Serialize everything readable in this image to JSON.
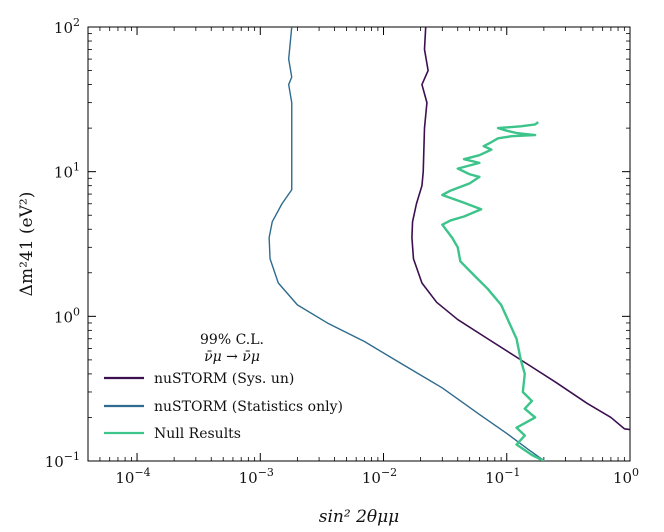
{
  "chart_data": {
    "type": "line",
    "xscale": "log",
    "yscale": "log",
    "xlim": [
      4e-05,
      1
    ],
    "ylim": [
      0.1,
      100
    ],
    "xlabel": "sin² 2θμμ",
    "ylabel": "Δm²41 (eV²)",
    "x_ticks": [
      {
        "value": 0.0001,
        "base": "10",
        "exp": "−4"
      },
      {
        "value": 0.001,
        "base": "10",
        "exp": "−3"
      },
      {
        "value": 0.01,
        "base": "10",
        "exp": "−2"
      },
      {
        "value": 0.1,
        "base": "10",
        "exp": "−1"
      },
      {
        "value": 1,
        "base": "10",
        "exp": "0"
      }
    ],
    "y_ticks": [
      {
        "value": 0.1,
        "base": "10",
        "exp": "−1"
      },
      {
        "value": 1,
        "base": "10",
        "exp": "0"
      },
      {
        "value": 10,
        "base": "10",
        "exp": "1"
      },
      {
        "value": 100,
        "base": "10",
        "exp": "2"
      }
    ],
    "legend": {
      "title_line1": "99% C.L.",
      "title_line2": "ν̄μ → ν̄μ",
      "placement": "lower-left"
    },
    "series": [
      {
        "name": "nuSTORM (Sys. un)",
        "color": "#3b0f50",
        "points": [
          [
            0.022,
            100
          ],
          [
            0.0215,
            70
          ],
          [
            0.023,
            50
          ],
          [
            0.0205,
            40
          ],
          [
            0.0225,
            30
          ],
          [
            0.0215,
            20
          ],
          [
            0.021,
            10
          ],
          [
            0.0205,
            8
          ],
          [
            0.0185,
            6
          ],
          [
            0.0172,
            4.5
          ],
          [
            0.017,
            3.5
          ],
          [
            0.0175,
            2.5
          ],
          [
            0.0205,
            1.7
          ],
          [
            0.027,
            1.25
          ],
          [
            0.04,
            0.95
          ],
          [
            0.07,
            0.7
          ],
          [
            0.13,
            0.5
          ],
          [
            0.25,
            0.35
          ],
          [
            0.45,
            0.25
          ],
          [
            0.7,
            0.2
          ],
          [
            0.9,
            0.167
          ],
          [
            1.0,
            0.165
          ]
        ]
      },
      {
        "name": "nuSTORM (Statistics only)",
        "color": "#2e6b8e",
        "points": [
          [
            0.0018,
            100
          ],
          [
            0.0017,
            60
          ],
          [
            0.0018,
            45
          ],
          [
            0.0017,
            40
          ],
          [
            0.0018,
            30
          ],
          [
            0.0018,
            20
          ],
          [
            0.0018,
            10
          ],
          [
            0.0018,
            7.5
          ],
          [
            0.0015,
            6
          ],
          [
            0.00125,
            4.5
          ],
          [
            0.00118,
            3.5
          ],
          [
            0.0012,
            2.5
          ],
          [
            0.0014,
            1.7
          ],
          [
            0.002,
            1.2
          ],
          [
            0.0035,
            0.9
          ],
          [
            0.007,
            0.67
          ],
          [
            0.014,
            0.47
          ],
          [
            0.03,
            0.32
          ],
          [
            0.06,
            0.21
          ],
          [
            0.1,
            0.155
          ],
          [
            0.15,
            0.12
          ],
          [
            0.22,
            0.095
          ]
        ]
      },
      {
        "name": "Null Results",
        "color": "#3cc48a",
        "points": [
          [
            0.2,
            0.1
          ],
          [
            0.16,
            0.11
          ],
          [
            0.12,
            0.13
          ],
          [
            0.14,
            0.15
          ],
          [
            0.12,
            0.17
          ],
          [
            0.17,
            0.2
          ],
          [
            0.14,
            0.23
          ],
          [
            0.16,
            0.26
          ],
          [
            0.135,
            0.3
          ],
          [
            0.14,
            0.4
          ],
          [
            0.13,
            0.5
          ],
          [
            0.12,
            0.7
          ],
          [
            0.09,
            1.2
          ],
          [
            0.07,
            1.55
          ],
          [
            0.055,
            1.9
          ],
          [
            0.042,
            2.4
          ],
          [
            0.04,
            3.0
          ],
          [
            0.036,
            3.5
          ],
          [
            0.03,
            4.3
          ],
          [
            0.035,
            4.6
          ],
          [
            0.045,
            4.9
          ],
          [
            0.062,
            5.5
          ],
          [
            0.045,
            6.1
          ],
          [
            0.03,
            6.9
          ],
          [
            0.035,
            7.4
          ],
          [
            0.05,
            8.3
          ],
          [
            0.06,
            9.2
          ],
          [
            0.05,
            9.6
          ],
          [
            0.04,
            10.5
          ],
          [
            0.06,
            11.5
          ],
          [
            0.045,
            12.2
          ],
          [
            0.06,
            13.0
          ],
          [
            0.075,
            14.2
          ],
          [
            0.065,
            15.0
          ],
          [
            0.075,
            16.0
          ],
          [
            0.085,
            17.0
          ],
          [
            0.11,
            17.6
          ],
          [
            0.17,
            17.9
          ],
          [
            0.12,
            18.5
          ],
          [
            0.1,
            19.2
          ],
          [
            0.085,
            20.0
          ],
          [
            0.13,
            20.6
          ],
          [
            0.17,
            21.2
          ],
          [
            0.18,
            22.0
          ]
        ]
      }
    ]
  }
}
